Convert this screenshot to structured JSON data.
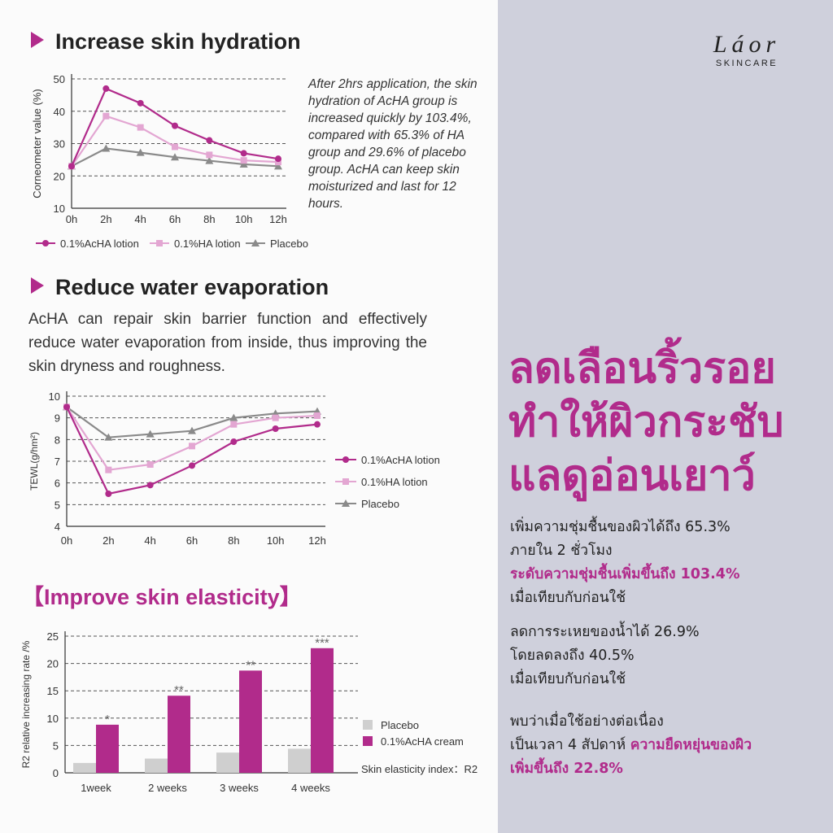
{
  "sections": {
    "hydration_title": "Increase skin hydration",
    "hydration_note": "After 2hrs application, the skin hydration of AcHA group is increased quickly by 103.4%, compared with 65.3% of HA group and 29.6% of placebo group. AcHA can keep skin moisturized and last for 12 hours.",
    "evaporation_title": "Reduce water evaporation",
    "evaporation_text": "AcHA can repair skin barrier function and effectively reduce water evaporation from inside, thus improving the skin dryness and roughness.",
    "elasticity_title": "【Improve skin elasticity】"
  },
  "brand": {
    "name": "Láor",
    "sub": "SKINCARE"
  },
  "right": {
    "headline": [
      "ลดเลือนริ้วรอย",
      "ทำให้ผิวกระชับ",
      "แลดูอ่อนเยาว์"
    ],
    "block1": {
      "line1": "เพิ่มความชุ่มชื้นของผิวได้ถึง 65.3%",
      "line2": "ภายใน 2 ชั่วโมง",
      "line3": "ระดับความชุ่มชื้นเพิ่มขึ้นถึง 103.4%",
      "line4": "เมื่อเทียบกับก่อนใช้"
    },
    "block2": {
      "line1": "ลดการระเหยของน้ำได้ 26.9%",
      "line2": "โดยลดลงถึง 40.5%",
      "line3": "เมื่อเทียบกับก่อนใช้"
    },
    "block3": {
      "line1": "พบว่าเมื่อใช้อย่างต่อเนื่อง",
      "line2a": "เป็นเวลา 4 สัปดาห์ ",
      "line2b": "ความยืดหยุ่นของผิว",
      "line3": "เพิ่มขึ้นถึง 22.8%"
    }
  },
  "colors": {
    "achA": "#b12b8b",
    "ha": "#e3a6d2",
    "placebo": "#8a8a8a",
    "placebo_bar": "#cfcfcf"
  },
  "chart_data": [
    {
      "type": "line",
      "ylabel": "Corneometer value  (%)",
      "x": [
        "0h",
        "2h",
        "4h",
        "6h",
        "8h",
        "10h",
        "12h"
      ],
      "ylim": [
        10,
        50
      ],
      "yticks": [
        10,
        20,
        30,
        40,
        50
      ],
      "grid": "dashed",
      "legend_position": "bottom",
      "series": [
        {
          "name": "0.1%AcHA lotion",
          "values": [
            23,
            47,
            42.5,
            35.5,
            31,
            27,
            25.3
          ]
        },
        {
          "name": "0.1%HA lotion",
          "values": [
            23,
            38.5,
            35,
            29,
            26.5,
            24.8,
            24.3
          ]
        },
        {
          "name": "Placebo",
          "values": [
            23,
            28.5,
            27.2,
            25.8,
            24.7,
            23.6,
            23
          ]
        }
      ]
    },
    {
      "type": "line",
      "ylabel": "TEWL(g/hm²)",
      "x": [
        "0h",
        "2h",
        "4h",
        "6h",
        "8h",
        "10h",
        "12h"
      ],
      "ylim": [
        4,
        10
      ],
      "yticks": [
        4,
        5,
        6,
        7,
        8,
        9,
        10
      ],
      "grid": "dashed",
      "legend_position": "right",
      "series": [
        {
          "name": "0.1%AcHA lotion",
          "values": [
            9.5,
            5.5,
            5.9,
            6.8,
            7.9,
            8.5,
            8.7
          ]
        },
        {
          "name": "0.1%HA lotion",
          "values": [
            9.5,
            6.6,
            6.85,
            7.7,
            8.7,
            9.0,
            9.1
          ]
        },
        {
          "name": "Placebo",
          "values": [
            9.5,
            8.1,
            8.25,
            8.4,
            9.0,
            9.2,
            9.3
          ]
        }
      ]
    },
    {
      "type": "bar",
      "ylabel": "R2 relative increasing rate /%",
      "categories": [
        "1week",
        "2 weeks",
        "3 weeks",
        "4 weeks"
      ],
      "ylim": [
        0,
        25
      ],
      "yticks": [
        0,
        5,
        10,
        15,
        20,
        25
      ],
      "grid": "dashed",
      "legend_position": "right",
      "annotation": "Skin elasticity index：R2",
      "series": [
        {
          "name": "Placebo",
          "values": [
            1.8,
            2.6,
            3.7,
            4.4
          ]
        },
        {
          "name": "0.1%AcHA cream",
          "values": [
            8.8,
            14.1,
            18.7,
            22.8
          ]
        }
      ],
      "significance": [
        "*",
        "**",
        "**",
        "***"
      ]
    }
  ]
}
